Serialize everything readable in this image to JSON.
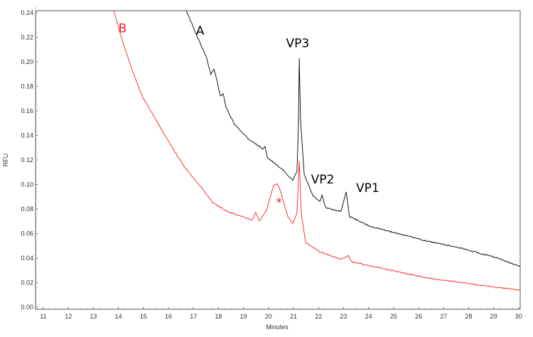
{
  "chart_data": {
    "type": "line",
    "title": "",
    "xlabel": "Minutes",
    "ylabel": "RFU",
    "xlim": [
      10.7,
      30.06
    ],
    "ylim": [
      0.0,
      0.245
    ],
    "grid": false,
    "x_ticks": [
      "11",
      "12",
      "13",
      "14",
      "15",
      "16",
      "17",
      "18",
      "19",
      "20",
      "21",
      "22",
      "23",
      "24",
      "25",
      "26",
      "27",
      "28",
      "29",
      "30"
    ],
    "y_ticks": [
      "0.00",
      "0.02",
      "0.04",
      "0.06",
      "0.08",
      "0.10",
      "0.12",
      "0.14",
      "0.16",
      "0.18",
      "0.20",
      "0.22",
      "0.24"
    ],
    "series": [
      {
        "name": "A",
        "color": "#000000",
        "x": [
          16.71,
          17.08,
          17.51,
          17.7,
          17.82,
          17.93,
          18.07,
          18.19,
          18.3,
          18.64,
          19.21,
          19.78,
          19.86,
          19.95,
          20.63,
          20.97,
          21.14,
          21.2,
          21.23,
          21.28,
          21.43,
          21.77,
          22.05,
          22.14,
          22.28,
          22.9,
          23.1,
          23.24,
          24.04,
          25.18,
          26.31,
          27.73,
          29.15,
          30.06
        ],
        "y": [
          0.242,
          0.224,
          0.204,
          0.19,
          0.194,
          0.186,
          0.172,
          0.174,
          0.163,
          0.149,
          0.137,
          0.129,
          0.131,
          0.122,
          0.111,
          0.103,
          0.111,
          0.152,
          0.203,
          0.152,
          0.108,
          0.091,
          0.086,
          0.091,
          0.081,
          0.078,
          0.094,
          0.074,
          0.066,
          0.06,
          0.054,
          0.048,
          0.04,
          0.033
        ]
      },
      {
        "name": "B",
        "color": "#ff2020",
        "x": [
          13.81,
          14.1,
          14.52,
          14.95,
          15.52,
          16.09,
          16.65,
          17.22,
          17.79,
          18.36,
          18.93,
          19.35,
          19.49,
          19.64,
          19.92,
          20.2,
          20.35,
          20.49,
          20.77,
          20.97,
          21.14,
          21.23,
          21.31,
          21.48,
          22.05,
          22.9,
          23.19,
          23.33,
          24.89,
          26.31,
          27.73,
          29.15,
          30.06
        ],
        "y": [
          0.242,
          0.221,
          0.195,
          0.172,
          0.152,
          0.132,
          0.114,
          0.1,
          0.085,
          0.078,
          0.074,
          0.071,
          0.077,
          0.07,
          0.079,
          0.099,
          0.101,
          0.094,
          0.074,
          0.068,
          0.077,
          0.119,
          0.077,
          0.053,
          0.045,
          0.039,
          0.042,
          0.037,
          0.03,
          0.024,
          0.02,
          0.016,
          0.014
        ]
      }
    ],
    "annotations": [
      {
        "text": "A",
        "color": "#000000",
        "x": 17.1,
        "y": 0.222
      },
      {
        "text": "B",
        "color": "#e8202a",
        "x": 14.0,
        "y": 0.224
      },
      {
        "text": "VP3",
        "color": "#000000",
        "x": 20.7,
        "y": 0.212
      },
      {
        "text": "VP2",
        "color": "#000000",
        "x": 21.7,
        "y": 0.101
      },
      {
        "text": "VP1",
        "color": "#000000",
        "x": 23.5,
        "y": 0.094
      },
      {
        "text": "*",
        "color": "#e8202a",
        "x": 20.3,
        "y": 0.082
      }
    ]
  }
}
